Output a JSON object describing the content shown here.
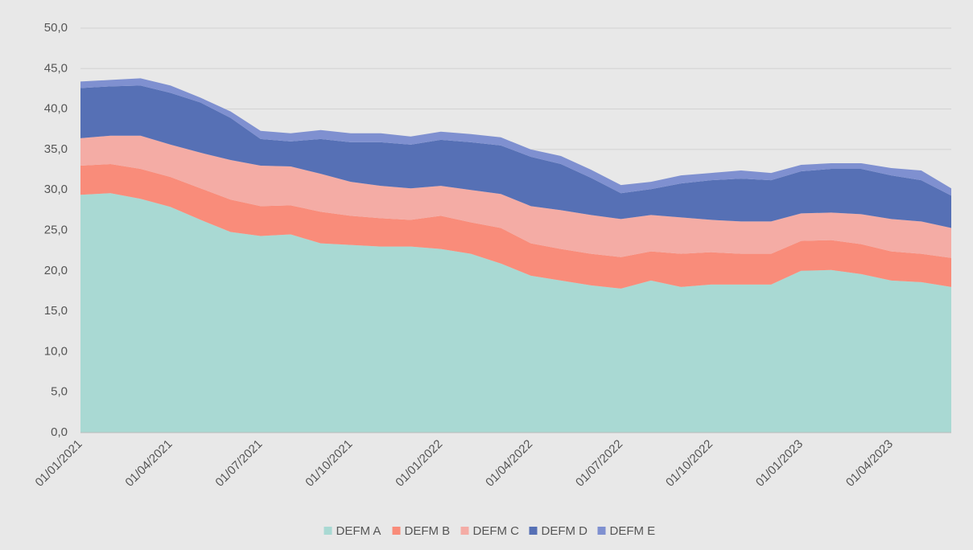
{
  "chart_data": {
    "type": "stacked_area",
    "categories": [
      "01/01/2021",
      null,
      null,
      "01/04/2021",
      null,
      null,
      "01/07/2021",
      null,
      null,
      "01/10/2021",
      null,
      null,
      "01/01/2022",
      null,
      null,
      "01/04/2022",
      null,
      null,
      "01/07/2022",
      null,
      null,
      "01/10/2022",
      null,
      null,
      "01/01/2023",
      null,
      null,
      "01/04/2023",
      null,
      null
    ],
    "series": [
      {
        "name": "DEFM A",
        "color": "#a9d9d3",
        "values": [
          29.4,
          29.6,
          28.9,
          27.9,
          26.3,
          24.8,
          24.3,
          24.5,
          23.4,
          23.2,
          23.0,
          23.0,
          22.7,
          22.1,
          20.9,
          19.4,
          18.8,
          18.2,
          17.8,
          18.8,
          18.0,
          18.3,
          18.3,
          18.3,
          20.0,
          20.1,
          19.6,
          18.8,
          18.6,
          18.0
        ]
      },
      {
        "name": "DEFM B",
        "color": "#f98c7a",
        "values": [
          3.6,
          3.6,
          3.7,
          3.7,
          3.9,
          4.0,
          3.7,
          3.6,
          3.9,
          3.6,
          3.5,
          3.3,
          4.1,
          3.9,
          4.4,
          4.0,
          3.9,
          3.9,
          3.9,
          3.6,
          4.1,
          4.0,
          3.8,
          3.8,
          3.7,
          3.7,
          3.7,
          3.6,
          3.5,
          3.6
        ]
      },
      {
        "name": "DEFM C",
        "color": "#f4aca5",
        "values": [
          3.4,
          3.5,
          4.1,
          4.0,
          4.4,
          4.9,
          5.0,
          4.8,
          4.7,
          4.2,
          4.0,
          3.9,
          3.7,
          4.0,
          4.2,
          4.6,
          4.8,
          4.8,
          4.7,
          4.5,
          4.5,
          4.0,
          4.0,
          4.0,
          3.4,
          3.4,
          3.7,
          4.0,
          4.0,
          3.7
        ]
      },
      {
        "name": "DEFM D",
        "color": "#5670b5",
        "values": [
          6.2,
          6.1,
          6.2,
          6.4,
          6.2,
          5.2,
          3.3,
          3.1,
          4.3,
          4.9,
          5.4,
          5.4,
          5.7,
          5.9,
          6.0,
          6.1,
          5.7,
          4.6,
          3.2,
          3.2,
          4.2,
          4.9,
          5.3,
          5.1,
          5.2,
          5.4,
          5.6,
          5.4,
          5.1,
          4.0
        ]
      },
      {
        "name": "DEFM E",
        "color": "#7f90d0",
        "values": [
          0.8,
          0.8,
          0.9,
          0.9,
          0.6,
          0.8,
          1.0,
          1.0,
          1.1,
          1.1,
          1.1,
          1.0,
          1.0,
          1.0,
          1.0,
          0.9,
          1.0,
          1.0,
          1.0,
          0.9,
          1.0,
          0.9,
          1.0,
          0.9,
          0.8,
          0.7,
          0.7,
          0.9,
          1.2,
          0.9
        ]
      }
    ],
    "ylim": [
      0,
      50
    ],
    "yticks": [
      {
        "value": 0,
        "label": "0,0"
      },
      {
        "value": 5,
        "label": "5,0"
      },
      {
        "value": 10,
        "label": "10,0"
      },
      {
        "value": 15,
        "label": "15,0"
      },
      {
        "value": 20,
        "label": "20,0"
      },
      {
        "value": 25,
        "label": "25,0"
      },
      {
        "value": 30,
        "label": "30,0"
      },
      {
        "value": 35,
        "label": "35,0"
      },
      {
        "value": 40,
        "label": "40,0"
      },
      {
        "value": 45,
        "label": "45,0"
      },
      {
        "value": 50,
        "label": "50,0"
      }
    ],
    "grid": true,
    "legend": "bottom"
  }
}
